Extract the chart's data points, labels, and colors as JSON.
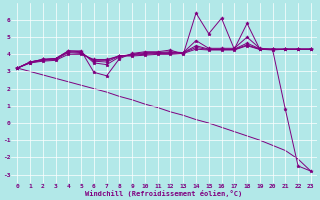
{
  "xlabel": "Windchill (Refroidissement éolien,°C)",
  "background_color": "#b2e8e8",
  "line_color": "#800080",
  "grid_color": "#ffffff",
  "xlim": [
    -0.5,
    23.5
  ],
  "ylim": [
    -3.5,
    7.0
  ],
  "xticks": [
    0,
    1,
    2,
    3,
    4,
    5,
    6,
    7,
    8,
    9,
    10,
    11,
    12,
    13,
    14,
    15,
    16,
    17,
    18,
    19,
    20,
    21,
    22,
    23
  ],
  "yticks": [
    -3,
    -2,
    -1,
    0,
    1,
    2,
    3,
    4,
    5,
    6
  ],
  "series1_x": [
    0,
    1,
    2,
    3,
    4,
    5,
    6,
    7,
    8,
    9,
    10,
    11,
    12,
    13,
    14,
    15,
    16,
    17,
    18,
    19,
    20,
    21,
    22,
    23
  ],
  "series1_y": [
    3.2,
    3.55,
    3.7,
    3.75,
    4.2,
    4.2,
    2.95,
    2.75,
    3.75,
    4.05,
    4.15,
    4.15,
    4.25,
    4.0,
    6.4,
    5.2,
    6.1,
    4.3,
    5.8,
    4.3,
    4.25,
    4.3,
    4.3,
    4.3
  ],
  "series2_x": [
    0,
    1,
    2,
    3,
    4,
    5,
    6,
    7,
    8,
    9,
    10,
    11,
    12,
    13,
    14,
    15,
    16,
    17,
    18,
    19,
    20,
    21,
    22,
    23
  ],
  "series2_y": [
    3.2,
    3.55,
    3.7,
    3.75,
    4.2,
    4.15,
    3.5,
    3.4,
    3.85,
    4.0,
    4.1,
    4.1,
    4.15,
    4.1,
    4.8,
    4.35,
    4.35,
    4.35,
    5.0,
    4.35,
    4.3,
    4.3,
    4.3,
    4.3
  ],
  "series3_x": [
    0,
    1,
    2,
    3,
    4,
    5,
    6,
    7,
    8,
    9,
    10,
    11,
    12,
    13,
    14,
    15,
    16,
    17,
    18,
    19,
    20,
    21,
    22,
    23
  ],
  "series3_y": [
    3.2,
    3.55,
    3.7,
    3.75,
    4.15,
    4.1,
    3.6,
    3.55,
    3.9,
    3.98,
    4.05,
    4.08,
    4.1,
    4.1,
    4.5,
    4.3,
    4.3,
    4.3,
    4.65,
    4.32,
    4.3,
    4.3,
    4.3,
    4.3
  ],
  "series4_x": [
    0,
    1,
    2,
    3,
    4,
    5,
    6,
    7,
    8,
    9,
    10,
    11,
    12,
    13,
    14,
    15,
    16,
    17,
    18,
    19,
    20,
    21,
    22,
    23
  ],
  "series4_y": [
    3.2,
    3.5,
    3.65,
    3.7,
    4.1,
    4.05,
    3.65,
    3.65,
    3.92,
    3.95,
    4.0,
    4.05,
    4.05,
    4.08,
    4.4,
    4.28,
    4.28,
    4.28,
    4.55,
    4.3,
    4.3,
    4.3,
    4.3,
    4.3
  ],
  "series5_x": [
    0,
    1,
    2,
    3,
    4,
    5,
    6,
    7,
    8,
    9,
    10,
    11,
    12,
    13,
    14,
    15,
    16,
    17,
    18,
    19,
    20,
    21,
    22,
    23
  ],
  "series5_y": [
    3.2,
    3.5,
    3.6,
    3.65,
    4.0,
    4.0,
    3.7,
    3.7,
    3.9,
    3.9,
    3.95,
    4.0,
    4.0,
    4.05,
    4.3,
    4.25,
    4.25,
    4.25,
    4.5,
    4.28,
    4.28,
    0.8,
    -2.5,
    -2.8
  ],
  "diag_x": [
    0,
    1,
    2,
    3,
    4,
    5,
    6,
    7,
    8,
    9,
    10,
    11,
    12,
    13,
    14,
    15,
    16,
    17,
    18,
    19,
    20,
    21,
    22,
    23
  ],
  "diag_y": [
    3.2,
    3.0,
    2.8,
    2.6,
    2.4,
    2.2,
    2.0,
    1.8,
    1.55,
    1.35,
    1.1,
    0.9,
    0.65,
    0.45,
    0.2,
    0.0,
    -0.25,
    -0.5,
    -0.75,
    -1.0,
    -1.3,
    -1.6,
    -2.1,
    -2.8
  ]
}
